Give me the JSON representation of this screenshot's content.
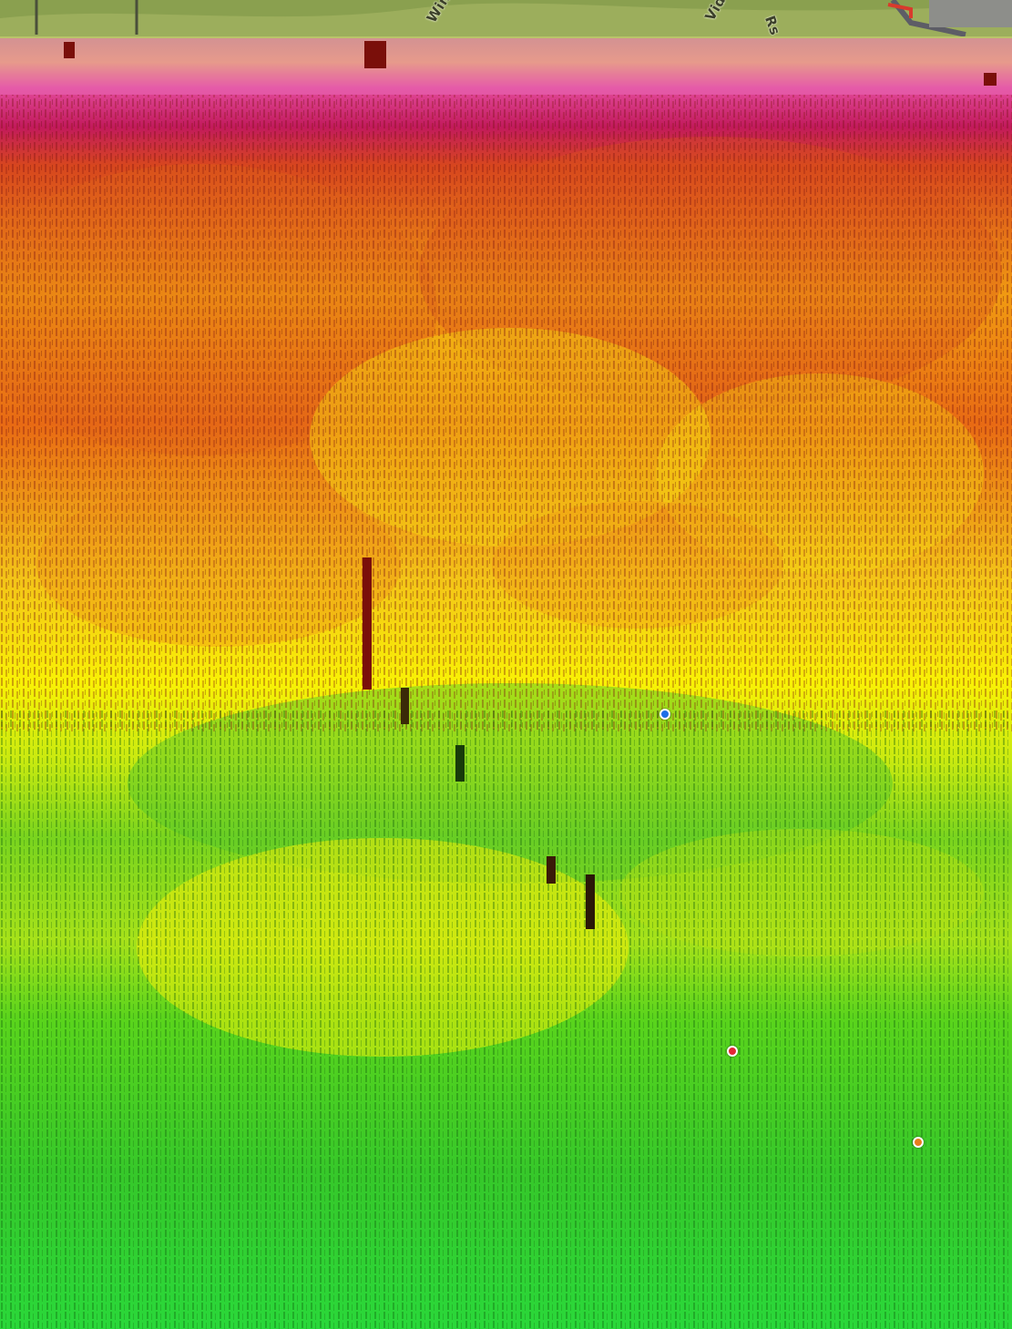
{
  "map": {
    "road_labels": {
      "left": "Wind D",
      "right": "Vida",
      "right_suffix": "Rs"
    },
    "legend_colors": {
      "high": "#a40d12",
      "upper": "#f08c14",
      "mid": "#f8f400",
      "lower": "#9fe21c",
      "low": "#2ad42a",
      "strip_pink": "#f28ad8",
      "terrain": "#7f9a45"
    },
    "markers": [
      {
        "name": "marker-1",
        "color": "#e32636"
      },
      {
        "name": "marker-2",
        "color": "#1e6ee8"
      },
      {
        "name": "marker-3",
        "color": "#e87d1e"
      }
    ]
  }
}
